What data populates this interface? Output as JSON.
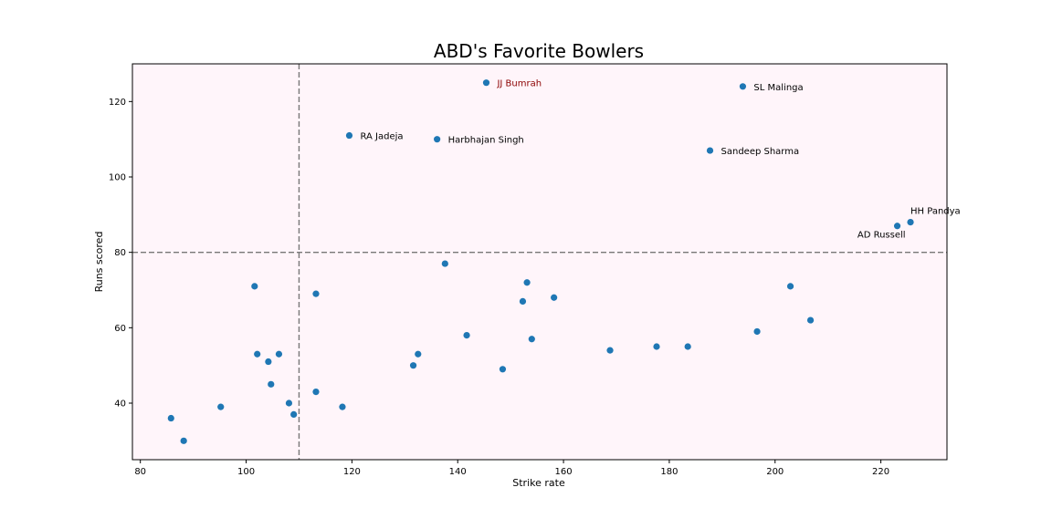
{
  "chart_data": {
    "type": "scatter",
    "title": "ABD's Favorite Bowlers",
    "xlabel": "Strike rate",
    "ylabel": "Runs scored",
    "xlim": [
      78.5,
      232.5
    ],
    "ylim": [
      25,
      130
    ],
    "xticks": [
      80,
      100,
      120,
      140,
      160,
      180,
      200,
      220
    ],
    "yticks": [
      40,
      60,
      80,
      100,
      120
    ],
    "grid": false,
    "reference_lines": {
      "vertical_x": 110,
      "horizontal_y": 80
    },
    "colors": {
      "plot_background": "#fff5fa",
      "point": "#1f77b4",
      "reference_line": "#777777",
      "highlight_label": "#8b0000"
    },
    "points": [
      {
        "x": 145.4,
        "y": 125,
        "label": "JJ Bumrah",
        "highlight": true
      },
      {
        "x": 193.9,
        "y": 124,
        "label": "SL Malinga"
      },
      {
        "x": 119.5,
        "y": 111,
        "label": "RA Jadeja"
      },
      {
        "x": 136.1,
        "y": 110,
        "label": "Harbhajan Singh"
      },
      {
        "x": 187.7,
        "y": 107,
        "label": "Sandeep Sharma"
      },
      {
        "x": 225.6,
        "y": 88,
        "label": "HH Pandya"
      },
      {
        "x": 223.1,
        "y": 87,
        "label": "AD Russell"
      },
      {
        "x": 137.6,
        "y": 77
      },
      {
        "x": 101.6,
        "y": 71
      },
      {
        "x": 113.2,
        "y": 69
      },
      {
        "x": 153.1,
        "y": 72
      },
      {
        "x": 152.3,
        "y": 67
      },
      {
        "x": 158.2,
        "y": 68
      },
      {
        "x": 202.9,
        "y": 71
      },
      {
        "x": 206.7,
        "y": 62
      },
      {
        "x": 196.6,
        "y": 59
      },
      {
        "x": 141.7,
        "y": 58
      },
      {
        "x": 154.0,
        "y": 57
      },
      {
        "x": 168.8,
        "y": 54
      },
      {
        "x": 177.6,
        "y": 55
      },
      {
        "x": 183.5,
        "y": 55
      },
      {
        "x": 102.1,
        "y": 53
      },
      {
        "x": 106.2,
        "y": 53
      },
      {
        "x": 104.2,
        "y": 51
      },
      {
        "x": 132.5,
        "y": 53
      },
      {
        "x": 131.6,
        "y": 50
      },
      {
        "x": 148.5,
        "y": 49
      },
      {
        "x": 104.7,
        "y": 45
      },
      {
        "x": 108.1,
        "y": 40
      },
      {
        "x": 113.2,
        "y": 43
      },
      {
        "x": 118.2,
        "y": 39
      },
      {
        "x": 109.0,
        "y": 37
      },
      {
        "x": 95.2,
        "y": 39
      },
      {
        "x": 85.8,
        "y": 36
      },
      {
        "x": 88.2,
        "y": 30
      }
    ]
  }
}
